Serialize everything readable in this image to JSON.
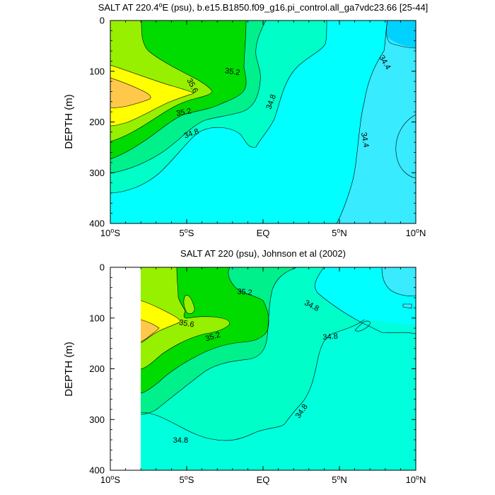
{
  "chart_data": [
    {
      "type": "contour",
      "title": "SALT AT 220.4°E (psu), b.e15.B1850.f09_g16.pi_control.all_ga7vdc23.66 [25-44]",
      "title_parts": [
        "SALT AT 220.4",
        "o",
        "E (psu), b.e15.B1850.f09_g16.pi_control.all_ga7vdc23.66 [25-44]"
      ],
      "ylabel": "DEPTH (m)",
      "y_reversed": true,
      "xlim": [
        -10,
        10
      ],
      "ylim": [
        0,
        400
      ],
      "yticks": [
        0,
        100,
        200,
        300,
        400
      ],
      "xticks": [
        {
          "v": -10,
          "num": "10",
          "sup": "o",
          "suf": "S"
        },
        {
          "v": -5,
          "num": "5",
          "sup": "o",
          "suf": "S"
        },
        {
          "v": 0,
          "num": "EQ",
          "sup": "",
          "suf": ""
        },
        {
          "v": 5,
          "num": "5",
          "sup": "o",
          "suf": "N"
        },
        {
          "v": 10,
          "num": "10",
          "sup": "o",
          "suf": "N"
        }
      ],
      "contour_interval": 0.2,
      "levels": [
        {
          "label": "35.6",
          "lat": -4.6,
          "depth": 128,
          "rot": 62
        },
        {
          "label": "35.2",
          "lat": -2.0,
          "depth": 100,
          "rot": 8
        },
        {
          "label": "35.2",
          "lat": -5.2,
          "depth": 180,
          "rot": -10
        },
        {
          "label": "34.8",
          "lat": 0.5,
          "depth": 160,
          "rot": -70
        },
        {
          "label": "34.8",
          "lat": -4.7,
          "depth": 222,
          "rot": -20
        },
        {
          "label": "34.4",
          "lat": 8.0,
          "depth": 82,
          "rot": 60
        },
        {
          "label": "34.4",
          "lat": 6.7,
          "depth": 235,
          "rot": 80
        }
      ]
    },
    {
      "type": "contour",
      "title": "SALT AT 220 (psu), Johnson et al (2002)",
      "ylabel": "DEPTH (m)",
      "y_reversed": true,
      "xlim": [
        -10,
        10
      ],
      "ylim": [
        0,
        400
      ],
      "data_lat_start": -8,
      "yticks": [
        0,
        100,
        200,
        300,
        400
      ],
      "xticks": [
        {
          "v": -10,
          "num": "10",
          "sup": "o",
          "suf": "S"
        },
        {
          "v": -5,
          "num": "5",
          "sup": "o",
          "suf": "S"
        },
        {
          "v": 0,
          "num": "EQ",
          "sup": "",
          "suf": ""
        },
        {
          "v": 5,
          "num": "5",
          "sup": "o",
          "suf": "N"
        },
        {
          "v": 10,
          "num": "10",
          "sup": "o",
          "suf": "N"
        }
      ],
      "contour_interval": 0.2,
      "levels": [
        {
          "label": "35.6",
          "lat": -5.0,
          "depth": 110,
          "rot": 10
        },
        {
          "label": "35.2",
          "lat": -1.2,
          "depth": 48,
          "rot": 5
        },
        {
          "label": "35.2",
          "lat": -3.3,
          "depth": 136,
          "rot": -18
        },
        {
          "label": "34.8",
          "lat": 3.2,
          "depth": 75,
          "rot": 28
        },
        {
          "label": "34.8",
          "lat": 4.4,
          "depth": 136,
          "rot": -5
        },
        {
          "label": "34.8",
          "lat": 2.5,
          "depth": 283,
          "rot": -55
        },
        {
          "label": "34.8",
          "lat": -5.4,
          "depth": 340,
          "rot": 0
        }
      ]
    }
  ]
}
